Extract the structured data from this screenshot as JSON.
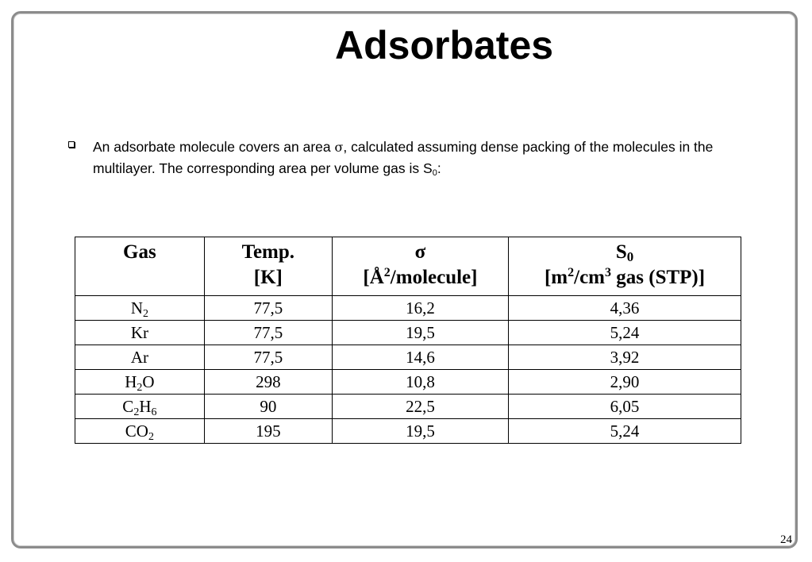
{
  "slide": {
    "title": "Adsorbates",
    "page_number": "24"
  },
  "bullet": {
    "icon": "hollow-square-bullet",
    "text_before_sigma": "An adsorbate molecule covers an area ",
    "sigma_symbol": "σ",
    "text_after_sigma": ", calculated assuming dense packing of the molecules in the multilayer. The corresponding area per volume gas is S",
    "subscript": "0",
    "text_end": ":"
  },
  "table": {
    "headers": {
      "gas": "Gas",
      "temp_line1": "Temp.",
      "temp_line2": "[K]",
      "sigma_line1": "σ",
      "sigma_unit_pre": "[Å",
      "sigma_unit_sup": "2",
      "sigma_unit_post": "/molecule]",
      "s0_main": "S",
      "s0_sub": "0",
      "s0_unit_a": "[m",
      "s0_unit_sup1": "2",
      "s0_unit_b": "/cm",
      "s0_unit_sup2": "3",
      "s0_unit_c": " gas (STP)]"
    },
    "rows": [
      {
        "gas": [
          {
            "t": "N"
          },
          {
            "sub": "2"
          }
        ],
        "temp": "77,5",
        "sigma": "16,2",
        "s0": "4,36"
      },
      {
        "gas": [
          {
            "t": "Kr"
          }
        ],
        "temp": "77,5",
        "sigma": "19,5",
        "s0": "5,24"
      },
      {
        "gas": [
          {
            "t": "Ar"
          }
        ],
        "temp": "77,5",
        "sigma": "14,6",
        "s0": "3,92"
      },
      {
        "gas": [
          {
            "t": "H"
          },
          {
            "sub": "2"
          },
          {
            "t": "O"
          }
        ],
        "temp": "298",
        "sigma": "10,8",
        "s0": "2,90"
      },
      {
        "gas": [
          {
            "t": "C"
          },
          {
            "sub": "2"
          },
          {
            "t": "H"
          },
          {
            "sub": "6"
          }
        ],
        "temp": "90",
        "sigma": "22,5",
        "s0": "6,05"
      },
      {
        "gas": [
          {
            "t": "CO"
          },
          {
            "sub": "2"
          }
        ],
        "temp": "195",
        "sigma": "19,5",
        "s0": "5,24"
      }
    ]
  }
}
